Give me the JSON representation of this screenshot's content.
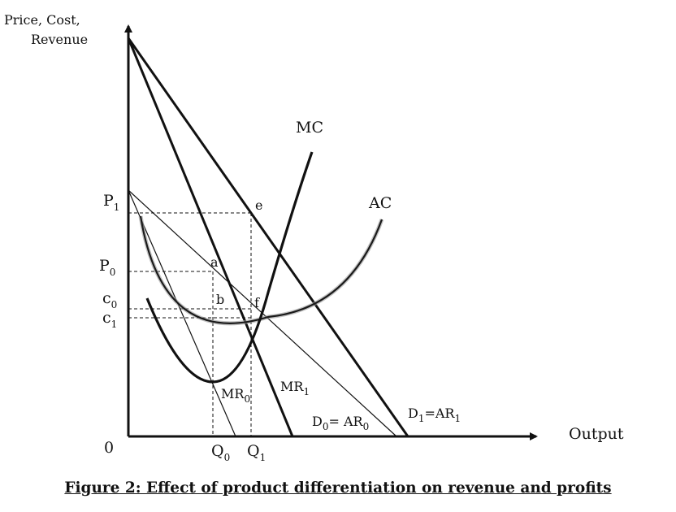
{
  "diagram": {
    "y_axis_label_line1": "Price, Cost,",
    "y_axis_label_line2": "Revenue",
    "x_axis_label": "Output",
    "origin_label": "0",
    "curve_labels": {
      "mc": "MC",
      "ac": "AC",
      "mr0": {
        "base": "MR",
        "sub": "0"
      },
      "mr1": {
        "base": "MR",
        "sub": "1"
      },
      "d0": {
        "base1": "D",
        "sub1": "0",
        "mid": "= AR",
        "sub2": "0"
      },
      "d1": {
        "base1": "D",
        "sub1": "1",
        "mid": "=AR",
        "sub2": "1"
      }
    },
    "y_tick_labels": {
      "p1": {
        "base": "P",
        "sub": "1"
      },
      "p0": {
        "base": "P",
        "sub": "0"
      },
      "c0": {
        "base": "c",
        "sub": "0"
      },
      "c1": {
        "base": "c",
        "sub": "1"
      }
    },
    "x_tick_labels": {
      "q0": {
        "base": "Q",
        "sub": "0"
      },
      "q1": {
        "base": "Q",
        "sub": "1"
      }
    },
    "point_labels": {
      "a": "a",
      "b": "b",
      "e": "e",
      "f": "f"
    }
  },
  "caption": "Figure 2: Effect of product differentiation on revenue and profits"
}
